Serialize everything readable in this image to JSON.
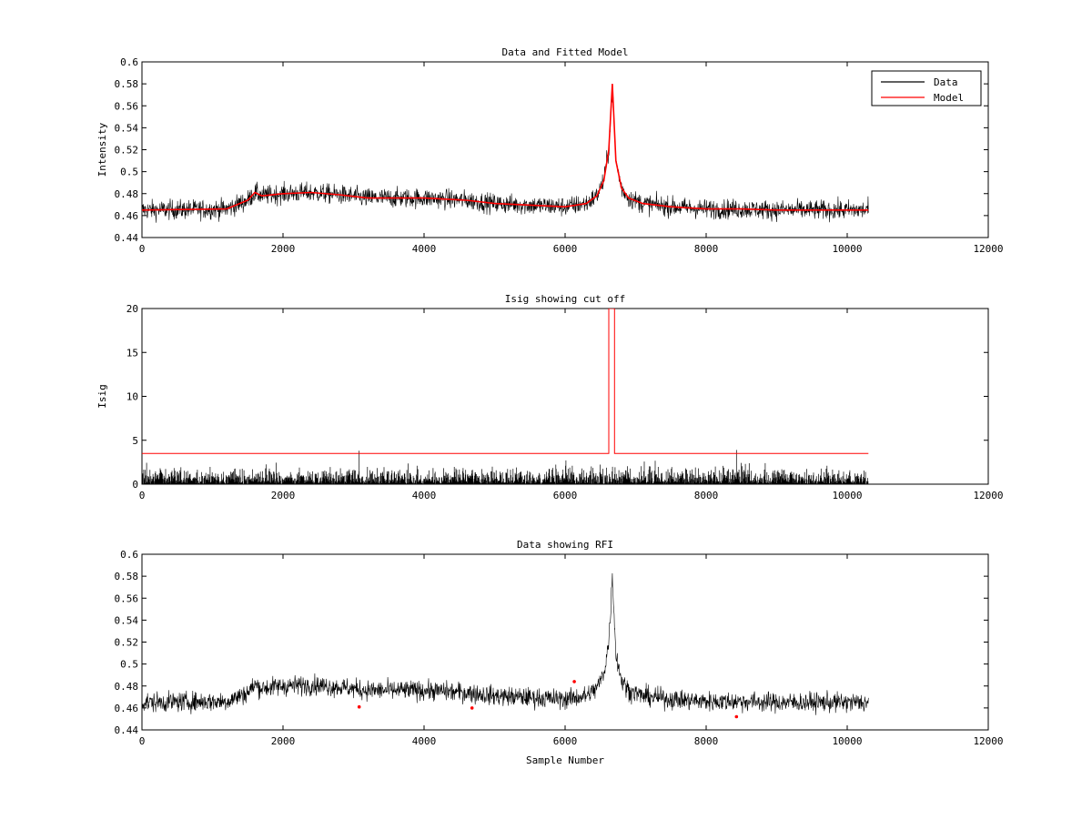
{
  "colors": {
    "data": "#000000",
    "model": "#ff0000",
    "background": "#ffffff"
  },
  "chart_data": [
    {
      "type": "line",
      "title": "Data and Fitted Model",
      "xlabel": "",
      "ylabel": "Intensity",
      "xlim": [
        0,
        12000
      ],
      "ylim": [
        0.44,
        0.6
      ],
      "xticks": [
        0,
        2000,
        4000,
        6000,
        8000,
        10000,
        12000
      ],
      "xtick_labels": [
        "0",
        "2000",
        "4000",
        "6000",
        "8000",
        "10000",
        "12000"
      ],
      "yticks": [
        0.44,
        0.46,
        0.48,
        0.5,
        0.52,
        0.54,
        0.56,
        0.58,
        0.6
      ],
      "ytick_labels": [
        "0.44",
        "0.46",
        "0.48",
        "0.5",
        "0.52",
        "0.54",
        "0.56",
        "0.58",
        "0.6"
      ],
      "legend": {
        "position": "top-right",
        "entries": [
          "Data",
          "Model"
        ]
      },
      "series": [
        {
          "name": "Data",
          "color": "#000000",
          "style": "noisy",
          "noise": 0.0085,
          "x": [
            0,
            1200,
            1500,
            1600,
            1700,
            2000,
            2400,
            2800,
            3200,
            4000,
            4600,
            5000,
            6000,
            6300,
            6450,
            6550,
            6620,
            6670,
            6720,
            6800,
            6900,
            7100,
            7500,
            8000,
            8500,
            9000,
            10300
          ],
          "y": [
            0.465,
            0.466,
            0.474,
            0.481,
            0.478,
            0.48,
            0.481,
            0.479,
            0.476,
            0.476,
            0.474,
            0.471,
            0.468,
            0.471,
            0.478,
            0.492,
            0.52,
            0.576,
            0.51,
            0.485,
            0.476,
            0.471,
            0.468,
            0.466,
            0.466,
            0.465,
            0.465
          ]
        },
        {
          "name": "Model",
          "color": "#ff0000",
          "style": "smooth",
          "x": [
            0,
            1200,
            1500,
            1600,
            1700,
            2000,
            2400,
            2800,
            3200,
            4000,
            4600,
            5000,
            6000,
            6300,
            6450,
            6550,
            6620,
            6670,
            6720,
            6800,
            6900,
            7100,
            7500,
            8000,
            8500,
            9000,
            10300
          ],
          "y": [
            0.465,
            0.466,
            0.474,
            0.481,
            0.478,
            0.48,
            0.481,
            0.479,
            0.476,
            0.476,
            0.474,
            0.471,
            0.468,
            0.471,
            0.478,
            0.492,
            0.52,
            0.58,
            0.51,
            0.485,
            0.476,
            0.471,
            0.468,
            0.466,
            0.466,
            0.465,
            0.465
          ]
        }
      ]
    },
    {
      "type": "line",
      "title": "Isig showing cut off",
      "xlabel": "",
      "ylabel": "Isig",
      "xlim": [
        0,
        12000
      ],
      "ylim": [
        0,
        20
      ],
      "xticks": [
        0,
        2000,
        4000,
        6000,
        8000,
        10000,
        12000
      ],
      "xtick_labels": [
        "0",
        "2000",
        "4000",
        "6000",
        "8000",
        "10000",
        "12000"
      ],
      "yticks": [
        0,
        5,
        10,
        15,
        20
      ],
      "ytick_labels": [
        "0",
        "5",
        "10",
        "15",
        "20"
      ],
      "series": [
        {
          "name": "Isig",
          "color": "#000000",
          "style": "spiky",
          "amplitude": 3.1,
          "x_range": [
            0,
            10300
          ],
          "spikes": [
            {
              "x": 3080,
              "y": 3.8
            },
            {
              "x": 8430,
              "y": 3.9
            }
          ]
        },
        {
          "name": "Cut off",
          "color": "#ff0000",
          "style": "step",
          "x": [
            0,
            6620,
            6620,
            6700,
            6700,
            10300
          ],
          "y": [
            3.5,
            3.5,
            20,
            20,
            3.5,
            3.5
          ]
        }
      ]
    },
    {
      "type": "line",
      "title": "Data showing RFI",
      "xlabel": "Sample Number",
      "ylabel": "",
      "xlim": [
        0,
        12000
      ],
      "ylim": [
        0.44,
        0.6
      ],
      "xticks": [
        0,
        2000,
        4000,
        6000,
        8000,
        10000,
        12000
      ],
      "xtick_labels": [
        "0",
        "2000",
        "4000",
        "6000",
        "8000",
        "10000",
        "12000"
      ],
      "yticks": [
        0.44,
        0.46,
        0.48,
        0.5,
        0.52,
        0.54,
        0.56,
        0.58,
        0.6
      ],
      "ytick_labels": [
        "0.44",
        "0.46",
        "0.48",
        "0.5",
        "0.52",
        "0.54",
        "0.56",
        "0.58",
        "0.6"
      ],
      "series": [
        {
          "name": "Data",
          "color": "#000000",
          "style": "noisy",
          "noise": 0.0085,
          "x": [
            0,
            1200,
            1500,
            1600,
            1700,
            2000,
            2400,
            2800,
            3200,
            4000,
            4600,
            5000,
            6000,
            6300,
            6450,
            6550,
            6620,
            6670,
            6720,
            6800,
            6900,
            7100,
            7500,
            8000,
            8500,
            9000,
            10300
          ],
          "y": [
            0.465,
            0.466,
            0.474,
            0.481,
            0.478,
            0.48,
            0.481,
            0.479,
            0.476,
            0.476,
            0.474,
            0.471,
            0.468,
            0.471,
            0.478,
            0.492,
            0.52,
            0.58,
            0.51,
            0.485,
            0.476,
            0.471,
            0.468,
            0.466,
            0.466,
            0.465,
            0.465
          ]
        },
        {
          "name": "RFI",
          "color": "#ff0000",
          "style": "markers",
          "x": [
            3080,
            4680,
            6130,
            8430
          ],
          "y": [
            0.461,
            0.46,
            0.484,
            0.452
          ]
        }
      ]
    }
  ]
}
